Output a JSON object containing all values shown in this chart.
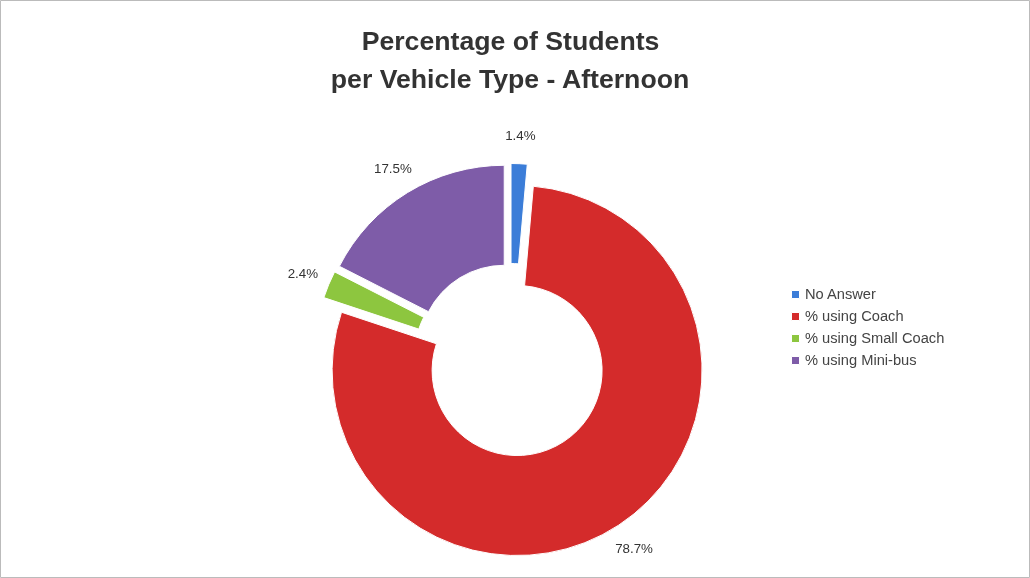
{
  "chart_data": {
    "type": "donut",
    "title": "Percentage of Students\nper Vehicle Type - Afternoon",
    "categories": [
      "No Answer",
      "% using Coach",
      "% using Small Coach",
      "% using Mini-bus"
    ],
    "values": [
      1.4,
      78.7,
      2.4,
      17.5
    ],
    "colors": [
      "#3b7dd8",
      "#d42b2b",
      "#8dc63f",
      "#7e5ca8"
    ],
    "value_labels": [
      "1.4%",
      "78.7%",
      "2.4%",
      "17.5%"
    ],
    "legend": "right"
  }
}
